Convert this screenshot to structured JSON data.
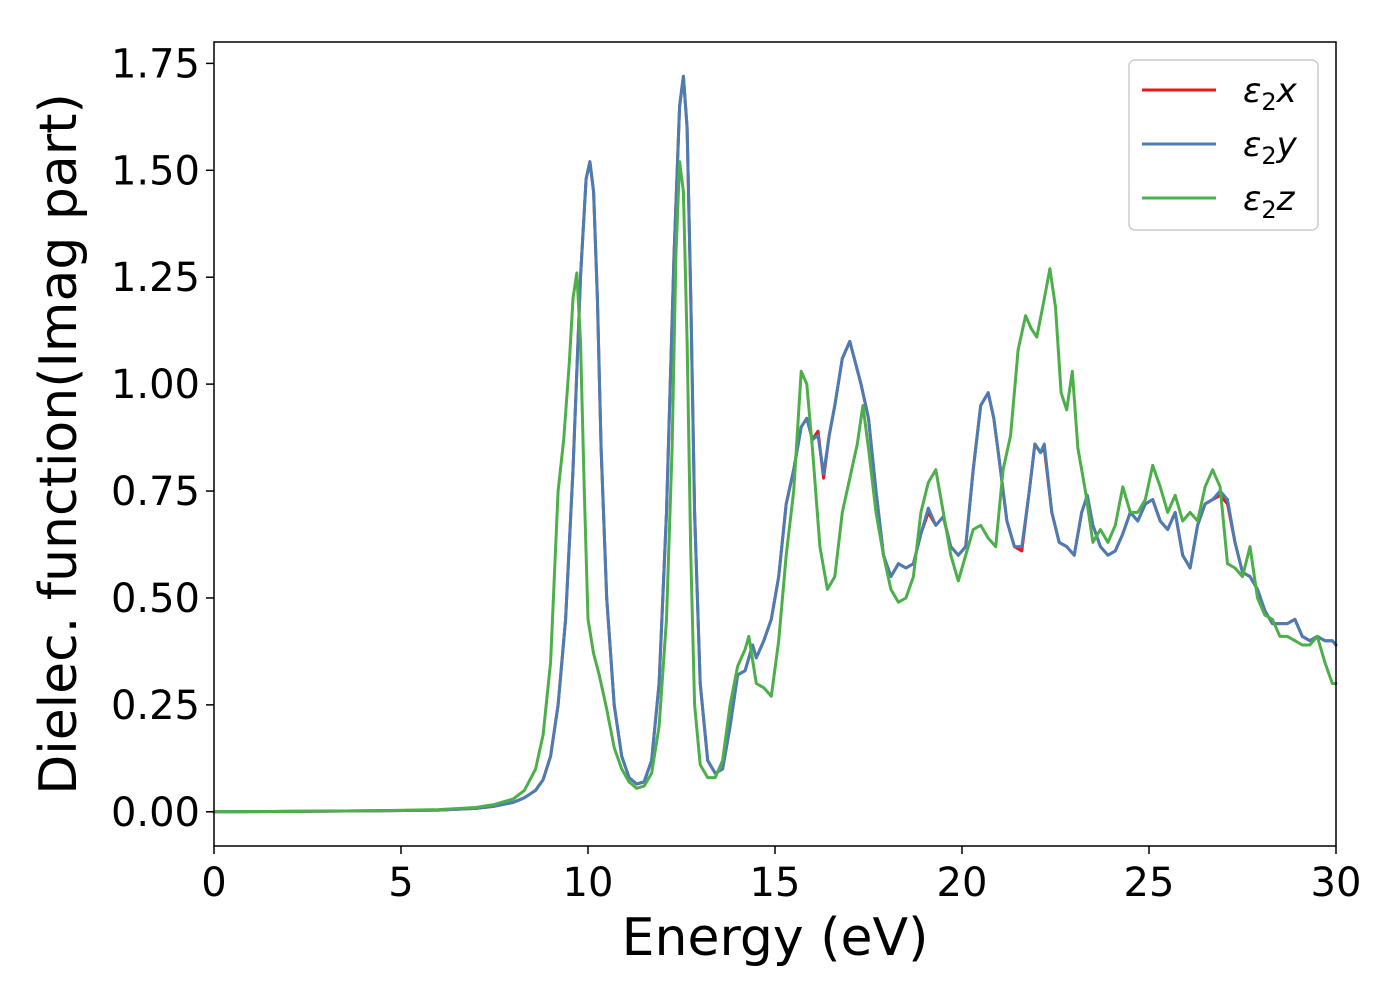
{
  "chart_data": {
    "type": "line",
    "xlabel": "Energy (eV)",
    "ylabel": "Dielec. function(Imag part)",
    "xlim": [
      0,
      30
    ],
    "ylim": [
      -0.08,
      1.8
    ],
    "xticks": [
      "0",
      "5",
      "10",
      "15",
      "20",
      "25",
      "30"
    ],
    "yticks": [
      "0.00",
      "0.25",
      "0.50",
      "0.75",
      "1.00",
      "1.25",
      "1.50",
      "1.75"
    ],
    "xtick_values": [
      0,
      5,
      10,
      15,
      20,
      25,
      30
    ],
    "ytick_values": [
      0,
      0.25,
      0.5,
      0.75,
      1.0,
      1.25,
      1.5,
      1.75
    ],
    "grid": false,
    "legend_position": "top-right",
    "series": [
      {
        "name": "ε2x",
        "legend_base": "ε",
        "legend_sub": "2",
        "legend_suffix": "x",
        "color": "#e41a1c",
        "x": [
          0,
          2,
          4,
          6,
          7,
          7.5,
          8,
          8.3,
          8.6,
          8.8,
          9.0,
          9.2,
          9.4,
          9.6,
          9.8,
          9.95,
          10.05,
          10.15,
          10.25,
          10.35,
          10.5,
          10.7,
          10.9,
          11.1,
          11.3,
          11.5,
          11.7,
          11.9,
          12.1,
          12.3,
          12.45,
          12.55,
          12.65,
          12.75,
          12.85,
          13.0,
          13.2,
          13.4,
          13.6,
          13.8,
          14.0,
          14.2,
          14.4,
          14.5,
          14.7,
          14.9,
          15.1,
          15.3,
          15.5,
          15.7,
          15.85,
          16.0,
          16.15,
          16.3,
          16.45,
          16.6,
          16.8,
          17.0,
          17.15,
          17.3,
          17.5,
          17.7,
          17.9,
          18.1,
          18.3,
          18.5,
          18.7,
          18.9,
          19.1,
          19.3,
          19.5,
          19.7,
          19.9,
          20.1,
          20.3,
          20.5,
          20.7,
          20.85,
          21.0,
          21.2,
          21.4,
          21.6,
          21.8,
          21.95,
          22.1,
          22.2,
          22.4,
          22.6,
          22.8,
          23.0,
          23.2,
          23.35,
          23.5,
          23.7,
          23.9,
          24.1,
          24.3,
          24.5,
          24.7,
          24.9,
          25.1,
          25.3,
          25.5,
          25.7,
          25.9,
          26.1,
          26.3,
          26.5,
          26.7,
          26.9,
          27.1,
          27.3,
          27.5,
          27.7,
          27.9,
          28.1,
          28.3,
          28.5,
          28.7,
          28.9,
          29.1,
          29.3,
          29.5,
          29.7,
          29.9,
          30.0
        ],
        "y": [
          0,
          0.001,
          0.002,
          0.004,
          0.008,
          0.013,
          0.022,
          0.033,
          0.05,
          0.075,
          0.13,
          0.25,
          0.45,
          0.8,
          1.25,
          1.48,
          1.52,
          1.45,
          1.2,
          0.85,
          0.5,
          0.25,
          0.13,
          0.08,
          0.065,
          0.07,
          0.12,
          0.3,
          0.7,
          1.3,
          1.65,
          1.72,
          1.6,
          1.2,
          0.7,
          0.3,
          0.12,
          0.09,
          0.1,
          0.2,
          0.32,
          0.33,
          0.39,
          0.36,
          0.4,
          0.45,
          0.55,
          0.72,
          0.8,
          0.9,
          0.92,
          0.87,
          0.89,
          0.78,
          0.88,
          0.95,
          1.06,
          1.1,
          1.05,
          1.0,
          0.92,
          0.75,
          0.6,
          0.55,
          0.58,
          0.57,
          0.58,
          0.65,
          0.7,
          0.67,
          0.69,
          0.62,
          0.6,
          0.62,
          0.8,
          0.95,
          0.98,
          0.92,
          0.82,
          0.68,
          0.62,
          0.61,
          0.75,
          0.86,
          0.84,
          0.85,
          0.7,
          0.63,
          0.62,
          0.6,
          0.7,
          0.74,
          0.67,
          0.62,
          0.6,
          0.61,
          0.65,
          0.7,
          0.68,
          0.72,
          0.73,
          0.68,
          0.66,
          0.7,
          0.6,
          0.57,
          0.67,
          0.72,
          0.73,
          0.74,
          0.72,
          0.63,
          0.56,
          0.55,
          0.52,
          0.47,
          0.44,
          0.44,
          0.44,
          0.45,
          0.41,
          0.4,
          0.41,
          0.4,
          0.4,
          0.39
        ]
      },
      {
        "name": "ε2y",
        "legend_base": "ε",
        "legend_sub": "2",
        "legend_suffix": "y",
        "color": "#4b7db5",
        "x": [
          0,
          2,
          4,
          6,
          7,
          7.5,
          8,
          8.3,
          8.6,
          8.8,
          9.0,
          9.2,
          9.4,
          9.6,
          9.8,
          9.95,
          10.05,
          10.15,
          10.25,
          10.35,
          10.5,
          10.7,
          10.9,
          11.1,
          11.3,
          11.5,
          11.7,
          11.9,
          12.1,
          12.3,
          12.45,
          12.55,
          12.65,
          12.75,
          12.85,
          13.0,
          13.2,
          13.4,
          13.6,
          13.8,
          14.0,
          14.2,
          14.4,
          14.5,
          14.7,
          14.9,
          15.1,
          15.3,
          15.5,
          15.7,
          15.85,
          16.0,
          16.15,
          16.3,
          16.45,
          16.6,
          16.8,
          17.0,
          17.15,
          17.3,
          17.5,
          17.7,
          17.9,
          18.1,
          18.3,
          18.5,
          18.7,
          18.9,
          19.1,
          19.3,
          19.5,
          19.7,
          19.9,
          20.1,
          20.3,
          20.5,
          20.7,
          20.85,
          21.0,
          21.2,
          21.4,
          21.6,
          21.8,
          21.95,
          22.1,
          22.2,
          22.4,
          22.6,
          22.8,
          23.0,
          23.2,
          23.35,
          23.5,
          23.7,
          23.9,
          24.1,
          24.3,
          24.5,
          24.7,
          24.9,
          25.1,
          25.3,
          25.5,
          25.7,
          25.9,
          26.1,
          26.3,
          26.5,
          26.7,
          26.9,
          27.1,
          27.3,
          27.5,
          27.7,
          27.9,
          28.1,
          28.3,
          28.5,
          28.7,
          28.9,
          29.1,
          29.3,
          29.5,
          29.7,
          29.9,
          30.0
        ],
        "y": [
          0,
          0.001,
          0.002,
          0.004,
          0.008,
          0.013,
          0.022,
          0.033,
          0.05,
          0.075,
          0.13,
          0.25,
          0.45,
          0.8,
          1.25,
          1.48,
          1.52,
          1.45,
          1.2,
          0.85,
          0.5,
          0.25,
          0.13,
          0.08,
          0.065,
          0.07,
          0.12,
          0.3,
          0.7,
          1.3,
          1.65,
          1.72,
          1.6,
          1.2,
          0.7,
          0.3,
          0.12,
          0.09,
          0.1,
          0.2,
          0.32,
          0.33,
          0.39,
          0.36,
          0.4,
          0.45,
          0.55,
          0.72,
          0.8,
          0.9,
          0.92,
          0.87,
          0.88,
          0.79,
          0.88,
          0.95,
          1.06,
          1.1,
          1.05,
          1.0,
          0.92,
          0.75,
          0.6,
          0.55,
          0.58,
          0.57,
          0.58,
          0.65,
          0.71,
          0.67,
          0.69,
          0.62,
          0.6,
          0.62,
          0.8,
          0.95,
          0.98,
          0.92,
          0.82,
          0.68,
          0.62,
          0.62,
          0.75,
          0.86,
          0.84,
          0.86,
          0.7,
          0.63,
          0.62,
          0.6,
          0.7,
          0.74,
          0.67,
          0.62,
          0.6,
          0.61,
          0.65,
          0.7,
          0.68,
          0.72,
          0.73,
          0.68,
          0.66,
          0.7,
          0.6,
          0.57,
          0.67,
          0.72,
          0.73,
          0.75,
          0.73,
          0.63,
          0.56,
          0.55,
          0.52,
          0.47,
          0.44,
          0.44,
          0.44,
          0.45,
          0.41,
          0.4,
          0.41,
          0.4,
          0.4,
          0.39
        ]
      },
      {
        "name": "ε2z",
        "legend_base": "ε",
        "legend_sub": "2",
        "legend_suffix": "z",
        "color": "#4daf4a",
        "x": [
          0,
          2,
          4,
          6,
          7,
          7.5,
          8,
          8.3,
          8.6,
          8.8,
          9.0,
          9.2,
          9.35,
          9.5,
          9.6,
          9.7,
          9.8,
          9.9,
          10.0,
          10.15,
          10.3,
          10.5,
          10.7,
          10.9,
          11.1,
          11.3,
          11.5,
          11.7,
          11.9,
          12.1,
          12.25,
          12.35,
          12.45,
          12.55,
          12.65,
          12.75,
          12.85,
          13.0,
          13.2,
          13.4,
          13.6,
          13.8,
          14.0,
          14.2,
          14.3,
          14.5,
          14.7,
          14.9,
          15.1,
          15.3,
          15.5,
          15.7,
          15.85,
          16.0,
          16.2,
          16.4,
          16.6,
          16.8,
          17.0,
          17.2,
          17.35,
          17.5,
          17.7,
          17.9,
          18.1,
          18.3,
          18.5,
          18.7,
          18.9,
          19.1,
          19.3,
          19.5,
          19.7,
          19.9,
          20.1,
          20.3,
          20.5,
          20.7,
          20.9,
          21.1,
          21.3,
          21.5,
          21.7,
          21.85,
          22.0,
          22.2,
          22.35,
          22.5,
          22.65,
          22.8,
          22.95,
          23.1,
          23.3,
          23.5,
          23.7,
          23.9,
          24.1,
          24.3,
          24.5,
          24.7,
          24.9,
          25.1,
          25.3,
          25.5,
          25.7,
          25.9,
          26.1,
          26.3,
          26.5,
          26.7,
          26.9,
          27.1,
          27.3,
          27.5,
          27.7,
          27.9,
          28.1,
          28.3,
          28.5,
          28.7,
          28.9,
          29.1,
          29.3,
          29.5,
          29.7,
          29.9,
          30.0
        ],
        "y": [
          0,
          0.001,
          0.002,
          0.005,
          0.01,
          0.017,
          0.03,
          0.05,
          0.1,
          0.18,
          0.35,
          0.75,
          0.87,
          1.05,
          1.2,
          1.26,
          1.1,
          0.75,
          0.45,
          0.37,
          0.32,
          0.24,
          0.15,
          0.1,
          0.07,
          0.055,
          0.06,
          0.09,
          0.2,
          0.45,
          0.85,
          1.3,
          1.52,
          1.45,
          1.1,
          0.6,
          0.25,
          0.11,
          0.08,
          0.08,
          0.12,
          0.25,
          0.34,
          0.38,
          0.41,
          0.3,
          0.29,
          0.27,
          0.4,
          0.6,
          0.75,
          1.03,
          1.0,
          0.85,
          0.62,
          0.52,
          0.55,
          0.7,
          0.78,
          0.86,
          0.95,
          0.85,
          0.7,
          0.6,
          0.52,
          0.49,
          0.5,
          0.55,
          0.7,
          0.77,
          0.8,
          0.7,
          0.6,
          0.54,
          0.6,
          0.66,
          0.67,
          0.64,
          0.62,
          0.8,
          0.88,
          1.08,
          1.16,
          1.13,
          1.11,
          1.2,
          1.27,
          1.18,
          0.98,
          0.94,
          1.03,
          0.85,
          0.75,
          0.63,
          0.66,
          0.63,
          0.67,
          0.76,
          0.7,
          0.7,
          0.73,
          0.81,
          0.76,
          0.7,
          0.74,
          0.68,
          0.7,
          0.68,
          0.76,
          0.8,
          0.76,
          0.58,
          0.57,
          0.55,
          0.62,
          0.5,
          0.46,
          0.45,
          0.41,
          0.41,
          0.4,
          0.39,
          0.39,
          0.41,
          0.35,
          0.3,
          0.3
        ]
      }
    ]
  }
}
